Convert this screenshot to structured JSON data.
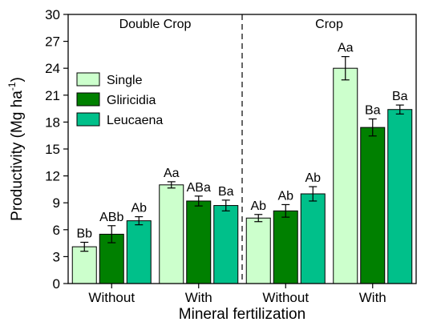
{
  "chart_data": {
    "type": "bar",
    "xlabel": "Mineral fertilization",
    "ylabel": "Productivity (Mg ha",
    "ylabel_sup": "-1",
    "ylabel_close": ")",
    "ylim": [
      0,
      30
    ],
    "yticks": [
      0,
      3,
      6,
      9,
      12,
      15,
      18,
      21,
      24,
      27,
      30
    ],
    "grid": false,
    "legend_position": "upper-left",
    "regions": [
      "Double Crop",
      "Crop"
    ],
    "categories": [
      "Without",
      "With",
      "Without",
      "With"
    ],
    "colors": {
      "Single": "#ccffcc",
      "Gliricidia": "#008000",
      "Leucaena": "#00c08a"
    },
    "series": [
      {
        "name": "Single",
        "values": [
          4.1,
          11.0,
          7.3,
          24.0
        ],
        "errors": [
          0.5,
          0.35,
          0.4,
          1.3
        ],
        "labels": [
          "Bb",
          "Aa",
          "Ab",
          "Aa"
        ]
      },
      {
        "name": "Gliricidia",
        "values": [
          5.5,
          9.2,
          8.1,
          17.4
        ],
        "errors": [
          0.95,
          0.55,
          0.7,
          0.95
        ],
        "labels": [
          "ABb",
          "ABa",
          "Ab",
          "Ba"
        ]
      },
      {
        "name": "Leucaena",
        "values": [
          7.0,
          8.7,
          10.0,
          19.4
        ],
        "errors": [
          0.45,
          0.6,
          0.8,
          0.5
        ],
        "labels": [
          "Ab",
          "Ba",
          "Ab",
          "Ba"
        ]
      }
    ]
  }
}
